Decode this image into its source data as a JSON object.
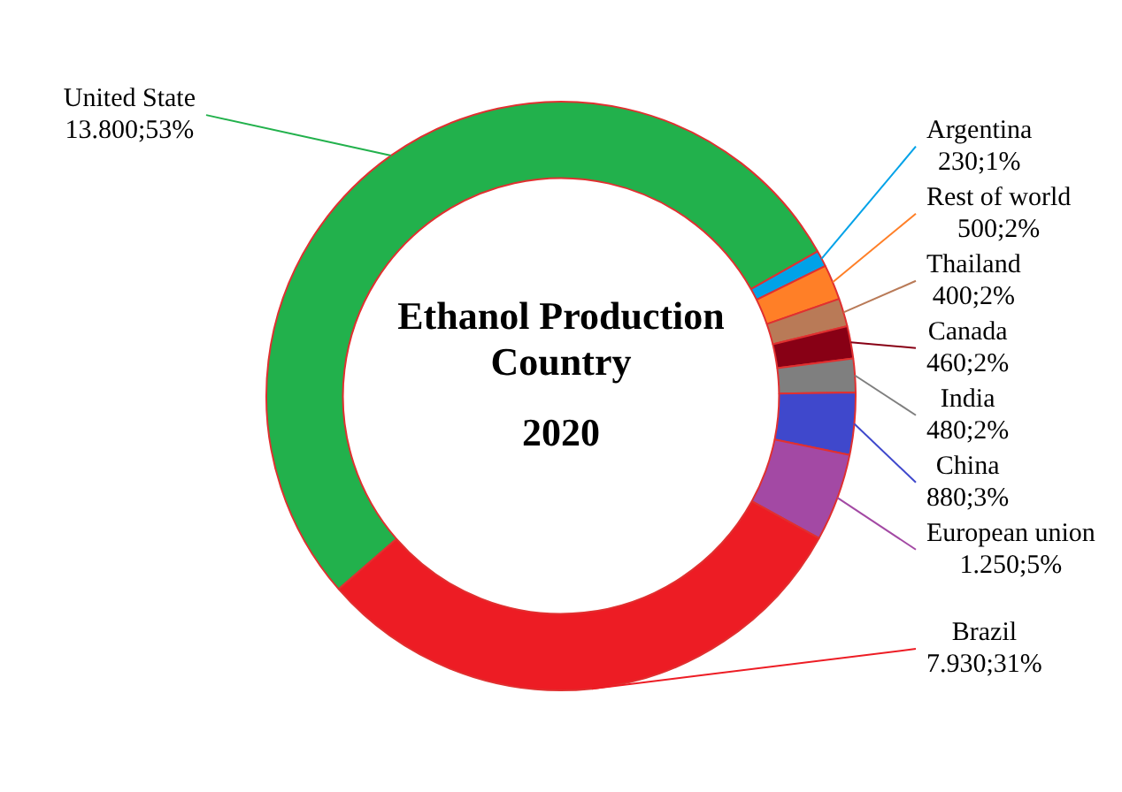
{
  "chart_data": {
    "type": "donut",
    "title": "Ethanol  Production Country",
    "subtitle": "2020",
    "categories": [
      "United State",
      "Argentina",
      "Rest of world",
      "Thailand",
      "Canada",
      "India",
      "China",
      "European union",
      "Brazil"
    ],
    "values": [
      13800,
      230,
      500,
      400,
      460,
      480,
      880,
      1250,
      7930
    ],
    "colors": [
      "#22b14c",
      "#00a2e8",
      "#ff7f27",
      "#b97a57",
      "#880015",
      "#7f7f7f",
      "#3f48cc",
      "#a349a4",
      "#ed1c24"
    ],
    "value_labels": [
      "13.800;53%",
      "230;1%",
      "500;2%",
      "400;2%",
      "460;2%",
      "480;2%",
      "880;3%",
      "1.250;5%",
      "7.930;31%"
    ]
  }
}
